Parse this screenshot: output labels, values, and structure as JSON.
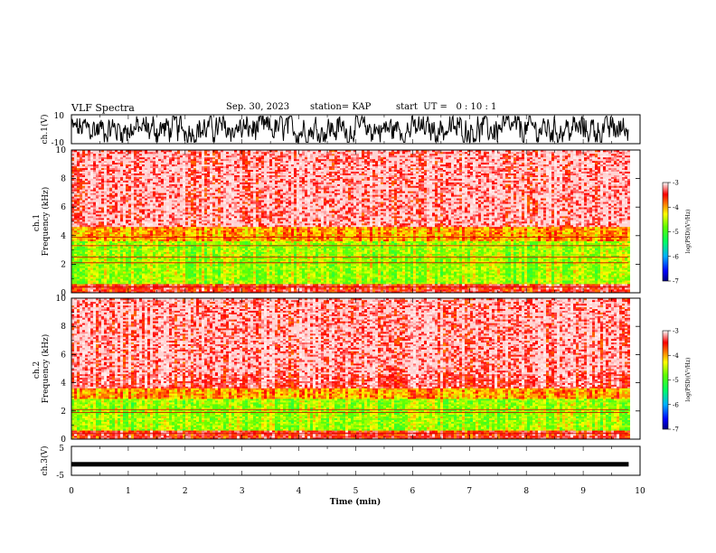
{
  "header": {
    "title": "VLF Spectra",
    "date": "Sep. 30, 2023",
    "station": "station= KAP",
    "start": "start  UT =   0 : 10 : 1"
  },
  "chart_data": [
    {
      "type": "line",
      "ylabel": "ch.1(V)",
      "ylim": [
        -10,
        10
      ],
      "yticks": [
        "10",
        "-10"
      ],
      "xlim": [
        0,
        10
      ],
      "description_series": "noisy waveform, amplitude up to about ±10 V, 0–9.8 min"
    },
    {
      "type": "heatmap",
      "ylabel": "ch.1\nFrequency (kHz)",
      "ylim": [
        0,
        10
      ],
      "yticks": [
        "0",
        "2",
        "4",
        "6",
        "8",
        "10"
      ],
      "xlim": [
        0,
        10
      ],
      "data_extent_min": 9.8,
      "colorbar": {
        "label": "log(PSD)(V²/Hz)",
        "range": [
          -7,
          -3
        ],
        "ticks": [
          "-3",
          "-4",
          "-5",
          "-6",
          "-7"
        ]
      },
      "bands": [
        {
          "from_khz": 0.0,
          "to_khz": 0.6,
          "level": -3.5
        },
        {
          "from_khz": 0.6,
          "to_khz": 3.6,
          "level": -4.6
        },
        {
          "from_khz": 3.6,
          "to_khz": 4.6,
          "level": -4.0
        },
        {
          "from_khz": 4.6,
          "to_khz": 10.0,
          "level": -3.3
        }
      ],
      "lines_khz": [
        0.4,
        2.1,
        2.5,
        3.3,
        3.9
      ]
    },
    {
      "type": "heatmap",
      "ylabel": "ch.2\nFrequency (kHz)",
      "ylim": [
        0,
        10
      ],
      "yticks": [
        "0",
        "2",
        "4",
        "6",
        "8",
        "10"
      ],
      "xlim": [
        0,
        10
      ],
      "data_extent_min": 9.8,
      "colorbar": {
        "label": "log(PSD)(V²/Hz)",
        "range": [
          -7,
          -3
        ],
        "ticks": [
          "-3",
          "-4",
          "-5",
          "-6",
          "-7"
        ]
      },
      "bands": [
        {
          "from_khz": 0.0,
          "to_khz": 0.6,
          "level": -3.5
        },
        {
          "from_khz": 0.6,
          "to_khz": 2.8,
          "level": -4.6
        },
        {
          "from_khz": 2.8,
          "to_khz": 3.6,
          "level": -4.0
        },
        {
          "from_khz": 3.6,
          "to_khz": 10.0,
          "level": -3.3
        }
      ],
      "lines_khz": [
        0.4,
        1.9,
        2.1
      ]
    },
    {
      "type": "line",
      "ylabel": "ch.3(V)",
      "ylim": [
        -5,
        5
      ],
      "yticks": [
        "5",
        "-5"
      ],
      "xlim": [
        0,
        10
      ],
      "xticks": [
        "0",
        "1",
        "2",
        "3",
        "4",
        "5",
        "6",
        "7",
        "8",
        "9",
        "10"
      ],
      "xlabel": "Time (min)",
      "description_series": "near-constant thick trace at about -1.2 V, 0–9.8 min"
    }
  ],
  "colors": {
    "cmap": [
      "#000080",
      "#0000ff",
      "#00c0ff",
      "#00ff80",
      "#40ff00",
      "#ffff00",
      "#ff8000",
      "#ff0000",
      "#ffe0e0"
    ],
    "trace": "#000000"
  }
}
